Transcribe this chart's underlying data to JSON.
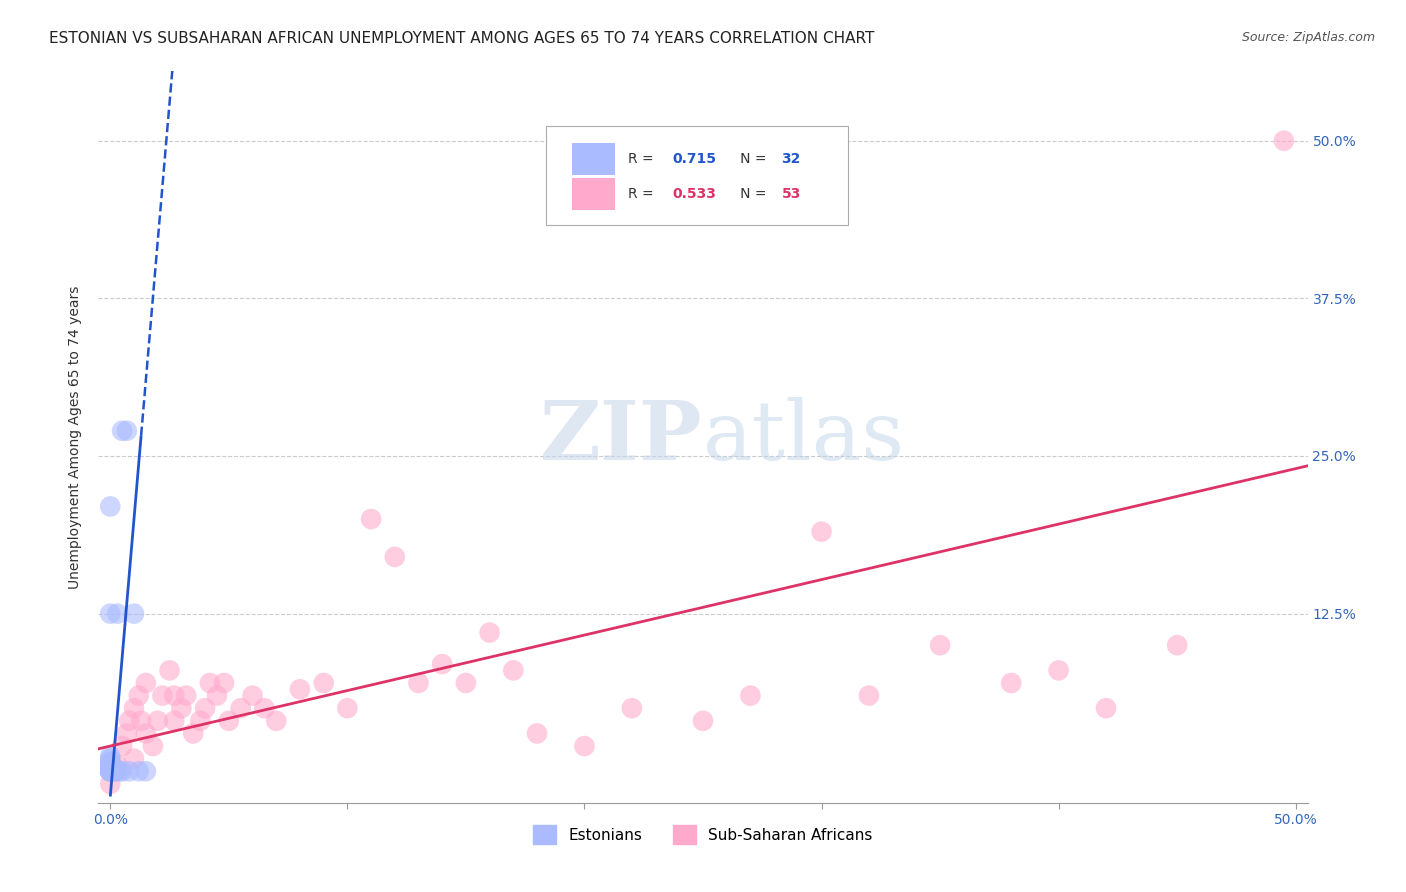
{
  "title": "ESTONIAN VS SUBSAHARAN AFRICAN UNEMPLOYMENT AMONG AGES 65 TO 74 YEARS CORRELATION CHART",
  "source": "Source: ZipAtlas.com",
  "ylabel": "Unemployment Among Ages 65 to 74 years",
  "xlim": [
    -0.005,
    0.505
  ],
  "ylim": [
    -0.025,
    0.555
  ],
  "estonian_color": "#aabbff",
  "subsaharan_color": "#ffaacc",
  "trendline_estonian_color": "#2255cc",
  "trendline_subsaharan_color": "#dd3366",
  "grid_color": "#cccccc",
  "background_color": "#ffffff",
  "title_fontsize": 11,
  "axis_label_fontsize": 10,
  "tick_fontsize": 10,
  "r_estonian": "0.715",
  "n_estonian": "32",
  "r_subsaharan": "0.533",
  "n_subsaharan": "53",
  "estonian_x": [
    0.0,
    0.0,
    0.0,
    0.0,
    0.0,
    0.0,
    0.0,
    0.0,
    0.0,
    0.0,
    0.0,
    0.0,
    0.0,
    0.0,
    0.0,
    0.0,
    0.0,
    0.0,
    0.0,
    0.0,
    0.002,
    0.002,
    0.003,
    0.003,
    0.004,
    0.005,
    0.005,
    0.007,
    0.008,
    0.01,
    0.012,
    0.015
  ],
  "estonian_y": [
    0.0,
    0.0,
    0.0,
    0.0,
    0.0,
    0.0,
    0.0,
    0.001,
    0.001,
    0.002,
    0.002,
    0.003,
    0.005,
    0.006,
    0.007,
    0.008,
    0.01,
    0.012,
    0.125,
    0.21,
    0.0,
    0.0,
    0.001,
    0.125,
    0.0,
    0.0,
    0.27,
    0.27,
    0.0,
    0.125,
    0.0,
    0.0
  ],
  "subsaharan_x": [
    0.0,
    0.003,
    0.005,
    0.007,
    0.008,
    0.01,
    0.01,
    0.012,
    0.013,
    0.015,
    0.015,
    0.018,
    0.02,
    0.022,
    0.025,
    0.027,
    0.027,
    0.03,
    0.032,
    0.035,
    0.038,
    0.04,
    0.042,
    0.045,
    0.048,
    0.05,
    0.055,
    0.06,
    0.065,
    0.07,
    0.08,
    0.09,
    0.1,
    0.11,
    0.12,
    0.13,
    0.14,
    0.15,
    0.16,
    0.17,
    0.18,
    0.2,
    0.22,
    0.25,
    0.27,
    0.3,
    0.32,
    0.35,
    0.38,
    0.4,
    0.42,
    0.45,
    0.495
  ],
  "subsaharan_y": [
    -0.01,
    0.005,
    0.02,
    0.03,
    0.04,
    0.01,
    0.05,
    0.06,
    0.04,
    0.03,
    0.07,
    0.02,
    0.04,
    0.06,
    0.08,
    0.06,
    0.04,
    0.05,
    0.06,
    0.03,
    0.04,
    0.05,
    0.07,
    0.06,
    0.07,
    0.04,
    0.05,
    0.06,
    0.05,
    0.04,
    0.065,
    0.07,
    0.05,
    0.2,
    0.17,
    0.07,
    0.085,
    0.07,
    0.11,
    0.08,
    0.03,
    0.02,
    0.05,
    0.04,
    0.06,
    0.19,
    0.06,
    0.1,
    0.07,
    0.08,
    0.05,
    0.1,
    0.5
  ],
  "slope_est": 22.0,
  "intercept_est": -0.02,
  "slope_sub": 0.44,
  "intercept_sub": 0.02
}
